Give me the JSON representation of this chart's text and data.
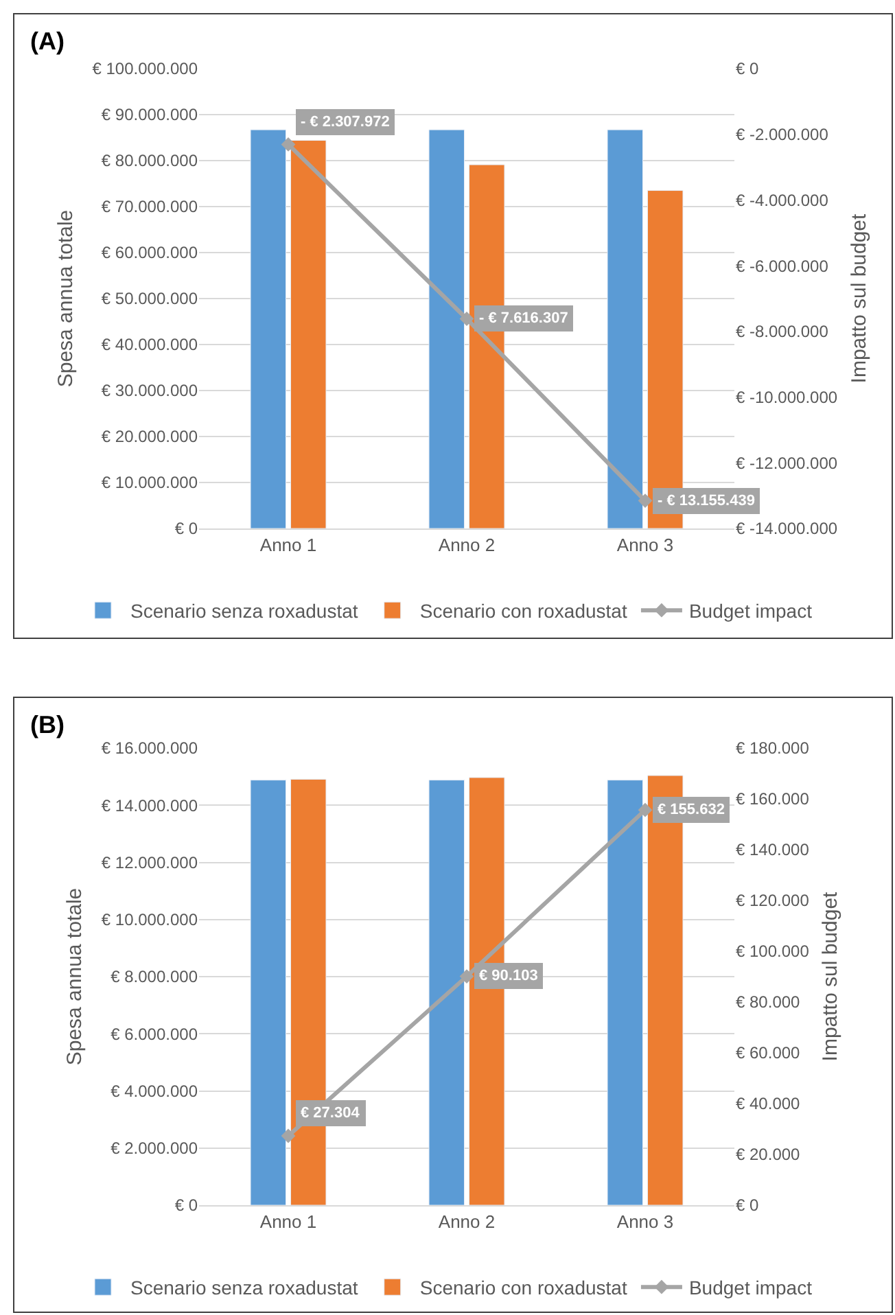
{
  "chart_data": [
    {
      "type": "bar",
      "title": "(A)",
      "categories": [
        "Anno 1",
        "Anno 2",
        "Anno 3"
      ],
      "ylabel": "Spesa annua totale",
      "y2label": "Impatto sul budget",
      "grid": "y",
      "legend": "bottom",
      "ylim": [
        0,
        100000000
      ],
      "yticks": [
        {
          "value": 0,
          "label": "€ 0"
        },
        {
          "value": 10000000,
          "label": "€ 10.000.000"
        },
        {
          "value": 20000000,
          "label": "€ 20.000.000"
        },
        {
          "value": 30000000,
          "label": "€ 30.000.000"
        },
        {
          "value": 40000000,
          "label": "€ 40.000.000"
        },
        {
          "value": 50000000,
          "label": "€ 50.000.000"
        },
        {
          "value": 60000000,
          "label": "€ 60.000.000"
        },
        {
          "value": 70000000,
          "label": "€ 70.000.000"
        },
        {
          "value": 80000000,
          "label": "€ 80.000.000"
        },
        {
          "value": 90000000,
          "label": "€ 90.000.000"
        },
        {
          "value": 100000000,
          "label": "€ 100.000.000"
        }
      ],
      "y2lim": [
        -14000000,
        0
      ],
      "y2ticks": [
        {
          "value": -14000000,
          "label": "€ -14.000.000"
        },
        {
          "value": -12000000,
          "label": "€ -12.000.000"
        },
        {
          "value": -10000000,
          "label": "€ -10.000.000"
        },
        {
          "value": -8000000,
          "label": "€ -8.000.000"
        },
        {
          "value": -6000000,
          "label": "€ -6.000.000"
        },
        {
          "value": -4000000,
          "label": "€ -4.000.000"
        },
        {
          "value": -2000000,
          "label": "€ -2.000.000"
        },
        {
          "value": 0,
          "label": "€ 0"
        }
      ],
      "series": [
        {
          "name": "Scenario senza roxadustat",
          "color": "#5b9bd5",
          "values": [
            86700000,
            86700000,
            86700000
          ]
        },
        {
          "name": "Scenario con roxadustat",
          "color": "#ed7d31",
          "values": [
            84400000,
            79100000,
            73500000
          ]
        },
        {
          "name": "Budget impact",
          "type": "line",
          "axis": "y2",
          "marker": "diamond",
          "color": "#a5a5a5",
          "values": [
            -2307972,
            -7616307,
            -13155439
          ],
          "value_labels": [
            "- € 2.307.972",
            "- € 7.616.307",
            "- € 13.155.439"
          ]
        }
      ]
    },
    {
      "type": "bar",
      "title": "(B)",
      "categories": [
        "Anno 1",
        "Anno 2",
        "Anno 3"
      ],
      "ylabel": "Spesa annua totale",
      "y2label": "Impatto sul budget",
      "grid": "y",
      "legend": "bottom",
      "ylim": [
        0,
        16000000
      ],
      "yticks": [
        {
          "value": 0,
          "label": "€ 0"
        },
        {
          "value": 2000000,
          "label": "€ 2.000.000"
        },
        {
          "value": 4000000,
          "label": "€ 4.000.000"
        },
        {
          "value": 6000000,
          "label": "€ 6.000.000"
        },
        {
          "value": 8000000,
          "label": "€ 8.000.000"
        },
        {
          "value": 10000000,
          "label": "€ 10.000.000"
        },
        {
          "value": 12000000,
          "label": "€ 12.000.000"
        },
        {
          "value": 14000000,
          "label": "€ 14.000.000"
        },
        {
          "value": 16000000,
          "label": "€ 16.000.000"
        }
      ],
      "y2lim": [
        0,
        180000
      ],
      "y2ticks": [
        {
          "value": 0,
          "label": "€ 0"
        },
        {
          "value": 20000,
          "label": "€ 20.000"
        },
        {
          "value": 40000,
          "label": "€ 40.000"
        },
        {
          "value": 60000,
          "label": "€ 60.000"
        },
        {
          "value": 80000,
          "label": "€ 80.000"
        },
        {
          "value": 100000,
          "label": "€ 100.000"
        },
        {
          "value": 120000,
          "label": "€ 120.000"
        },
        {
          "value": 140000,
          "label": "€ 140.000"
        },
        {
          "value": 160000,
          "label": "€ 160.000"
        },
        {
          "value": 180000,
          "label": "€ 180.000"
        }
      ],
      "series": [
        {
          "name": "Scenario senza roxadustat",
          "color": "#5b9bd5",
          "values": [
            14880000,
            14880000,
            14880000
          ]
        },
        {
          "name": "Scenario con roxadustat",
          "color": "#ed7d31",
          "values": [
            14910000,
            14970000,
            15040000
          ]
        },
        {
          "name": "Budget impact",
          "type": "line",
          "axis": "y2",
          "marker": "diamond",
          "color": "#a5a5a5",
          "values": [
            27304,
            90103,
            155632
          ],
          "value_labels": [
            "€ 27.304",
            "€ 90.103",
            "€ 155.632"
          ]
        }
      ]
    }
  ]
}
